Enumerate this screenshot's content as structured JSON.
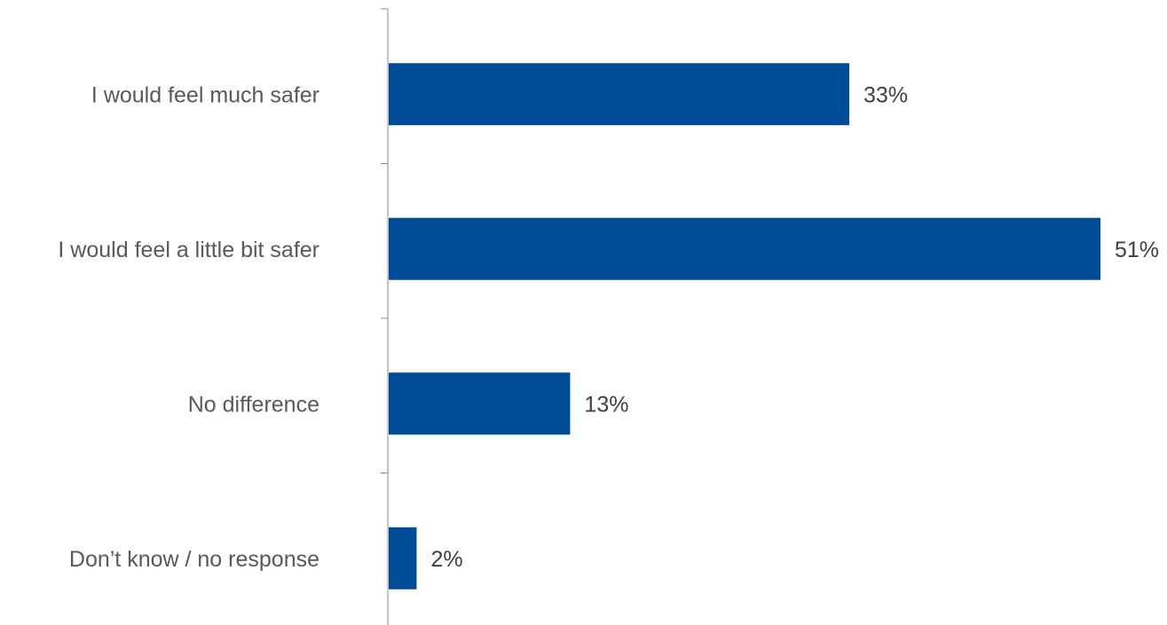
{
  "chart_data": {
    "type": "bar",
    "orientation": "horizontal",
    "categories": [
      "I would feel much safer",
      "I would feel a little bit safer",
      "No difference",
      "Don’t know / no response"
    ],
    "values": [
      33,
      51,
      13,
      2
    ],
    "value_labels": [
      "33%",
      "51%",
      "13%",
      "2%"
    ],
    "title": "",
    "xlabel": "",
    "ylabel": "",
    "xlim": [
      0,
      51
    ],
    "grid": false,
    "legend": "none",
    "colors": {
      "bar": "#004B96",
      "axis": "#8C8C8C",
      "category_text": "#595959",
      "value_text": "#404040"
    }
  }
}
